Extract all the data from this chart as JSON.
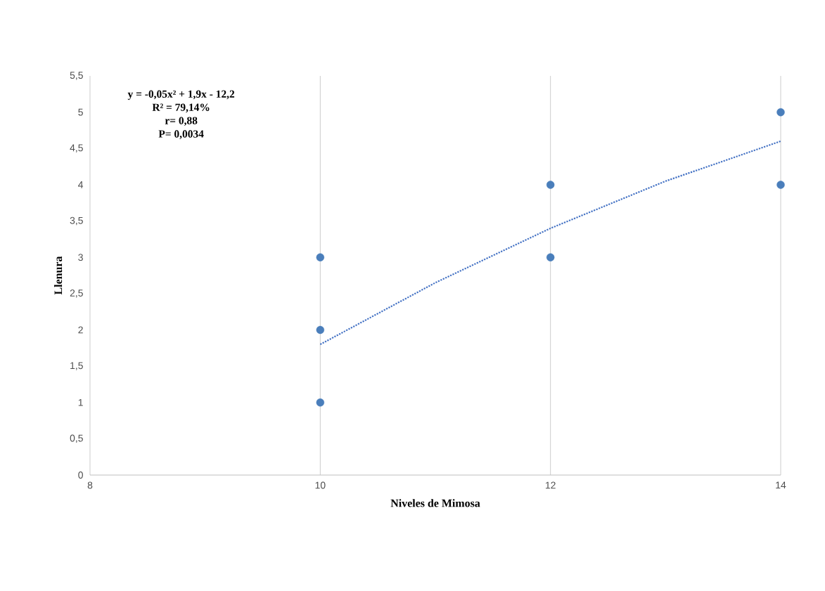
{
  "chart_data": {
    "type": "scatter",
    "xlabel": "Niveles de Mimosa",
    "ylabel": "Llenura",
    "annotations": [
      "**y = -0,05x² + 1,9x - 12,2**",
      "**R² = 79,14%**",
      "**r= 0,88**",
      "**P= 0,0034**"
    ],
    "series": [
      {
        "color": "#4a7ebb",
        "marker": "circle",
        "x": [
          10,
          10,
          10,
          12,
          12,
          14,
          14
        ],
        "values": [
          1,
          2,
          3,
          3,
          4,
          4,
          5
        ]
      },
      {
        "type": "line",
        "color": "#4472c4",
        "line_style": "dotted",
        "marker": "none",
        "x": [
          10,
          11,
          12,
          13,
          14
        ],
        "values": [
          1.8,
          2.65,
          3.4,
          4.05,
          4.6
        ]
      }
    ],
    "xlim": [
      8,
      14
    ],
    "xticks": [
      8,
      10,
      12,
      14
    ],
    "ylim": [
      0,
      5.5
    ],
    "yticks": [
      0,
      {
        "value": 0.5,
        "label": "0,5"
      },
      1,
      {
        "value": 1.5,
        "label": "1,5"
      },
      2,
      {
        "value": 2.5,
        "label": "2,5"
      },
      3,
      {
        "value": 3.5,
        "label": "3,5"
      },
      4,
      {
        "value": 4.5,
        "label": "4,5"
      },
      5,
      {
        "value": 5.5,
        "label": "5,5"
      }
    ],
    "grid": "x"
  }
}
